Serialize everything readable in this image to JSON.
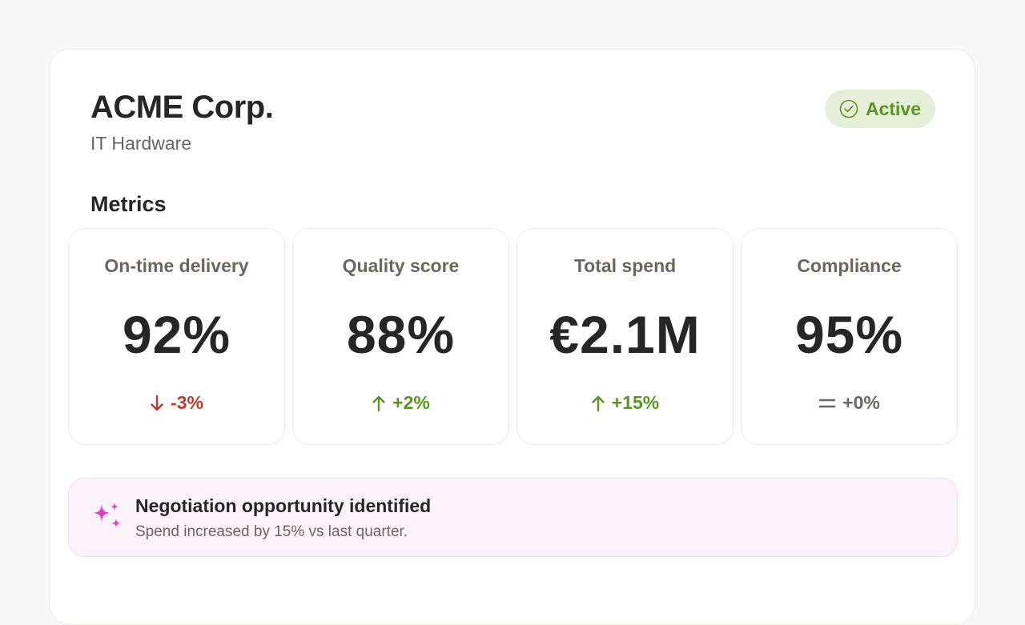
{
  "supplier": {
    "name": "ACME Corp.",
    "category": "IT Hardware",
    "status": {
      "label": "Active",
      "icon": "check-circle-icon",
      "color": "#5a9520",
      "background": "#e6f0d9"
    }
  },
  "metrics": {
    "title": "Metrics",
    "items": [
      {
        "label": "On-time delivery",
        "value": "92%",
        "change": "-3%",
        "trend": "down",
        "icon": "arrow-down-icon",
        "color": "#c0392b"
      },
      {
        "label": "Quality score",
        "value": "88%",
        "change": "+2%",
        "trend": "up",
        "icon": "arrow-up-icon",
        "color": "#5a9520"
      },
      {
        "label": "Total spend",
        "value": "€2.1M",
        "change": "+15%",
        "trend": "up",
        "icon": "arrow-up-icon",
        "color": "#5a9520"
      },
      {
        "label": "Compliance",
        "value": "95%",
        "change": "+0%",
        "trend": "flat",
        "icon": "equals-icon",
        "color": "#6b6760"
      }
    ]
  },
  "insight": {
    "icon": "sparkle-icon",
    "title": "Negotiation opportunity identified",
    "text": "Spend increased by 15% vs last quarter.",
    "accent_color": "#e040b8"
  }
}
